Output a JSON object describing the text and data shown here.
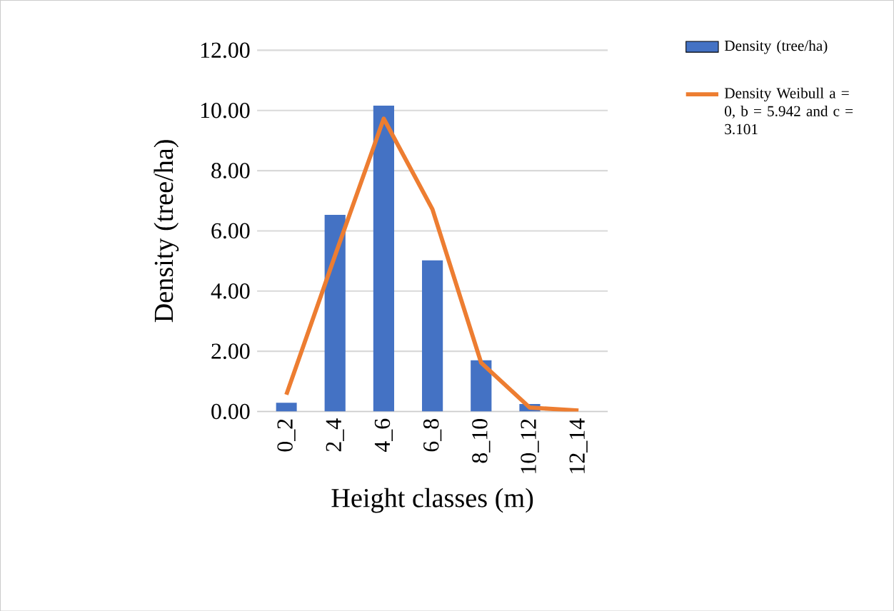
{
  "chart_data": {
    "type": "bar",
    "xlabel": "Height classes (m)",
    "ylabel": "Density (tree/ha)",
    "categories": [
      "0_2",
      "2_4",
      "4_6",
      "6_8",
      "8_10",
      "10_12",
      "12_14"
    ],
    "series": [
      {
        "name": "Density (tree/ha)",
        "color": "#4472c4",
        "values": [
          0.29,
          6.53,
          10.16,
          5.02,
          1.7,
          0.25,
          0
        ]
      },
      {
        "name": "Density Weibull a = 0, b = 5.942 and c = 3.101",
        "color": "#ed7d31",
        "type": "line",
        "values": [
          0.56,
          5.18,
          9.73,
          6.72,
          1.62,
          0.13,
          0.03
        ]
      }
    ],
    "ylim": [
      0,
      12
    ],
    "yticks": [
      {
        "value": 0,
        "label": "0.00"
      },
      {
        "value": 2,
        "label": "2.00"
      },
      {
        "value": 4,
        "label": "4.00"
      },
      {
        "value": 6,
        "label": "6.00"
      },
      {
        "value": 8,
        "label": "8.00"
      },
      {
        "value": 10,
        "label": "10.00"
      },
      {
        "value": 12,
        "label": "12.00"
      }
    ],
    "grid": "y",
    "legend": "right"
  }
}
